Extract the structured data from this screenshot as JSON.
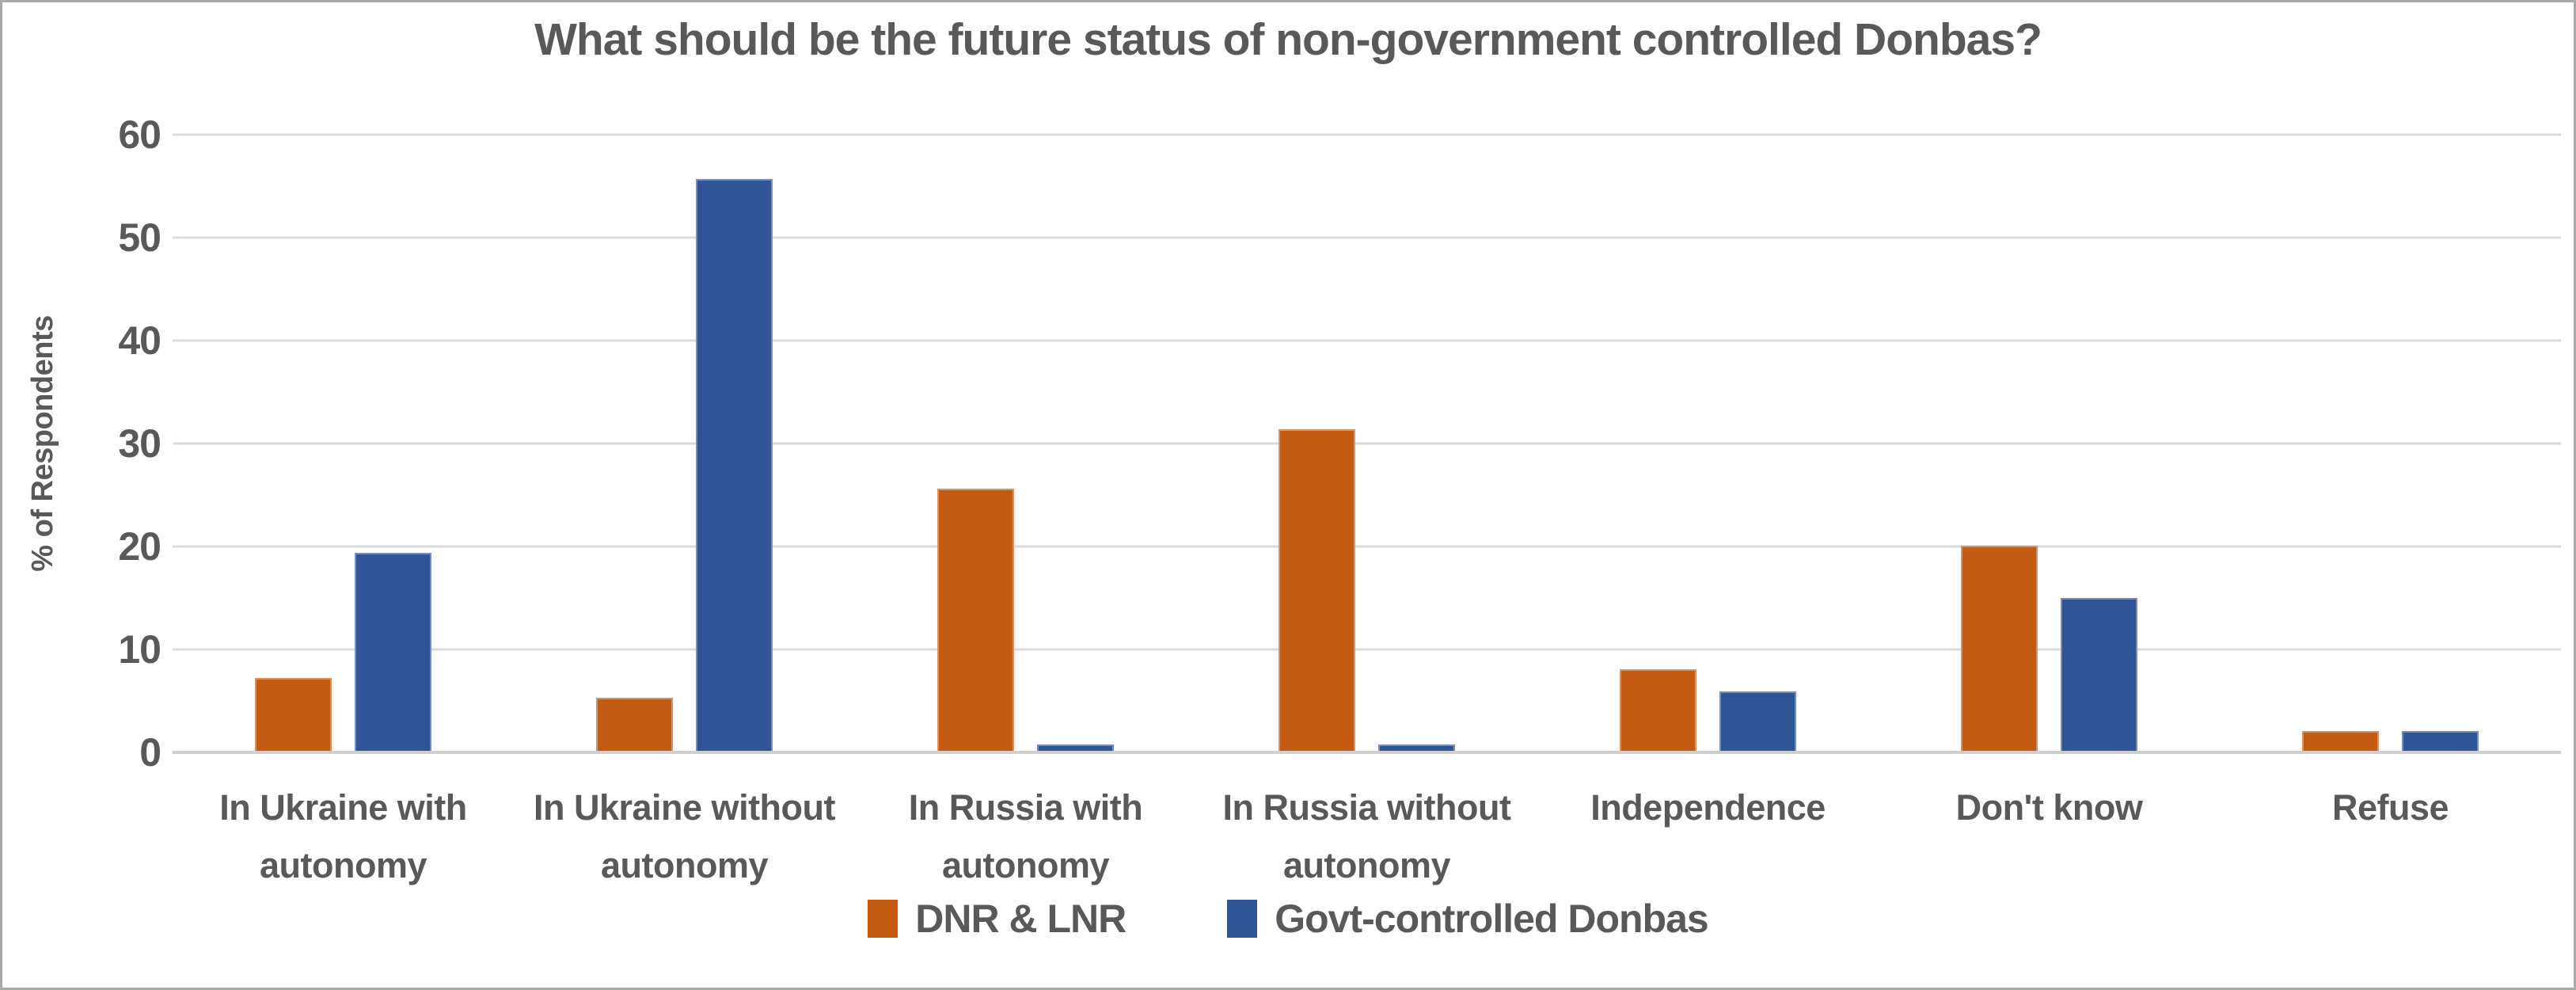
{
  "window": {
    "background": "#ffffff",
    "border_color": "#a9a9a7",
    "text_color": "#595959",
    "gridline_color": "#d9d9d9"
  },
  "chart_data": {
    "type": "bar",
    "title": "What should be the future status of non-government controlled Donbas?",
    "xlabel": "",
    "ylabel": "% of Respondents",
    "ylim": [
      0,
      60
    ],
    "yticks": [
      0,
      10,
      20,
      30,
      40,
      50,
      60
    ],
    "grid": true,
    "legend_position": "bottom",
    "categories": [
      "In Ukraine with autonomy",
      "In Ukraine without autonomy",
      "In Russia with autonomy",
      "In Russia without autonomy",
      "Independence",
      "Don't know",
      "Refuse"
    ],
    "series": [
      {
        "name": "DNR & LNR",
        "color": "#C55A11",
        "values": [
          7.2,
          5.3,
          25.6,
          31.4,
          8.1,
          20.1,
          2.1
        ]
      },
      {
        "name": "Govt-controlled Donbas",
        "color": "#2F5597",
        "values": [
          19.4,
          55.7,
          0.8,
          0.8,
          5.9,
          15.0,
          2.1
        ]
      }
    ]
  }
}
